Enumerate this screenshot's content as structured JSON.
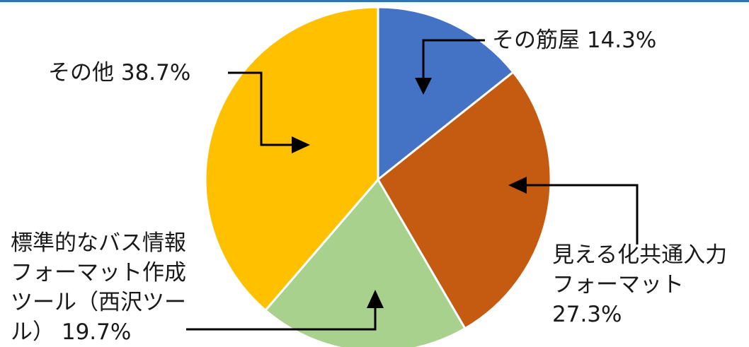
{
  "chart_data": {
    "type": "pie",
    "slices": [
      {
        "label": "その筋屋",
        "value": 14.3,
        "value_label": "14.3%",
        "color": "#4472c4"
      },
      {
        "label_lines": [
          "見える化共通入力",
          "フォーマット"
        ],
        "value": 27.3,
        "value_label": "27.3%",
        "color": "#c55a11"
      },
      {
        "label_lines": [
          "標準的なバス情報",
          "フォーマット作成",
          "ツール（西沢ツー",
          "ル）"
        ],
        "value": 19.7,
        "value_label": "19.7%",
        "color": "#a9d18e"
      },
      {
        "label": "その他",
        "value": 38.7,
        "value_label": "38.7%",
        "color": "#ffc000"
      }
    ],
    "slice_border": "#ffffff",
    "label_text_color": "#1a1a1a",
    "arrow_color": "#000000",
    "accent_line_color": "#2e75b6"
  }
}
